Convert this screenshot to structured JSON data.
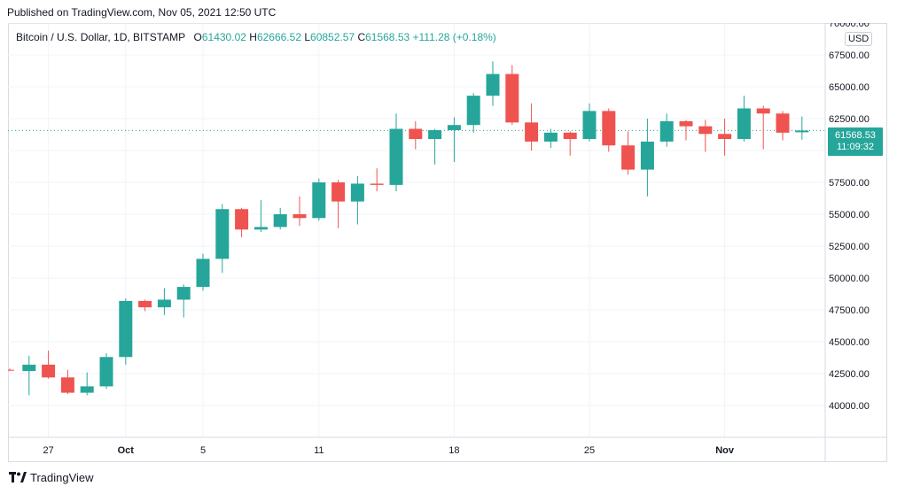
{
  "header": {
    "published": "Published on TradingView.com, Nov 05, 2021 12:50 UTC"
  },
  "legend": {
    "symbol": "Bitcoin / U.S. Dollar, 1D, BITSTAMP",
    "o_label": "O",
    "o_value": "61430.02",
    "h_label": "H",
    "h_value": "62666.52",
    "l_label": "L",
    "l_value": "60852.57",
    "c_label": "C",
    "c_value": "61568.53",
    "change": "+111.28 (+0.18%)"
  },
  "currency": "USD",
  "price_tag": {
    "price": "61568.53",
    "countdown": "11:09:32"
  },
  "footer": {
    "brand": "TradingView"
  },
  "colors": {
    "up": "#26a69a",
    "down": "#ef5350",
    "grid": "#f0f3fa",
    "axis_text": "#131722"
  },
  "chart_data": {
    "type": "candlestick",
    "ylim": [
      37500,
      70000
    ],
    "y_ticks": [
      70000,
      67500,
      65000,
      62500,
      60000,
      57500,
      55000,
      52500,
      50000,
      47500,
      45000,
      42500,
      40000
    ],
    "y_tick_labels": [
      "70000.00",
      "67500.00",
      "65000.00",
      "62500.00",
      "60000.00",
      "57500.00",
      "55000.00",
      "52500.00",
      "50000.00",
      "47500.00",
      "45000.00",
      "42500.00",
      "40000.00"
    ],
    "x_ticks": [
      {
        "label": "27",
        "date": "2021-09-27"
      },
      {
        "label": "Oct",
        "date": "2021-10-01"
      },
      {
        "label": "5",
        "date": "2021-10-05"
      },
      {
        "label": "11",
        "date": "2021-10-11"
      },
      {
        "label": "18",
        "date": "2021-10-18"
      },
      {
        "label": "25",
        "date": "2021-10-25"
      },
      {
        "label": "Nov",
        "date": "2021-11-01"
      }
    ],
    "last_price": 61568.53,
    "candles": [
      {
        "date": "2021-09-25",
        "o": 42800,
        "h": 42900,
        "l": 42700,
        "c": 42750
      },
      {
        "date": "2021-09-26",
        "o": 42700,
        "h": 43900,
        "l": 40800,
        "c": 43200
      },
      {
        "date": "2021-09-27",
        "o": 43200,
        "h": 44300,
        "l": 42100,
        "c": 42200
      },
      {
        "date": "2021-09-28",
        "o": 42200,
        "h": 42800,
        "l": 40900,
        "c": 41000
      },
      {
        "date": "2021-09-29",
        "o": 41000,
        "h": 42600,
        "l": 40800,
        "c": 41500
      },
      {
        "date": "2021-09-30",
        "o": 41500,
        "h": 44100,
        "l": 41300,
        "c": 43800
      },
      {
        "date": "2021-10-01",
        "o": 43800,
        "h": 48400,
        "l": 43200,
        "c": 48200
      },
      {
        "date": "2021-10-02",
        "o": 48200,
        "h": 48300,
        "l": 47400,
        "c": 47700
      },
      {
        "date": "2021-10-03",
        "o": 47700,
        "h": 49200,
        "l": 47100,
        "c": 48300
      },
      {
        "date": "2021-10-04",
        "o": 48300,
        "h": 49500,
        "l": 46900,
        "c": 49300
      },
      {
        "date": "2021-10-05",
        "o": 49300,
        "h": 51900,
        "l": 49000,
        "c": 51500
      },
      {
        "date": "2021-10-06",
        "o": 51500,
        "h": 55800,
        "l": 50400,
        "c": 55400
      },
      {
        "date": "2021-10-07",
        "o": 55400,
        "h": 55500,
        "l": 53200,
        "c": 53800
      },
      {
        "date": "2021-10-08",
        "o": 53800,
        "h": 56100,
        "l": 53600,
        "c": 54000
      },
      {
        "date": "2021-10-09",
        "o": 54000,
        "h": 55500,
        "l": 53800,
        "c": 55000
      },
      {
        "date": "2021-10-10",
        "o": 55000,
        "h": 56400,
        "l": 54100,
        "c": 54700
      },
      {
        "date": "2021-10-11",
        "o": 54700,
        "h": 57800,
        "l": 54500,
        "c": 57500
      },
      {
        "date": "2021-10-12",
        "o": 57500,
        "h": 57700,
        "l": 53900,
        "c": 56000
      },
      {
        "date": "2021-10-13",
        "o": 56000,
        "h": 58000,
        "l": 54200,
        "c": 57400
      },
      {
        "date": "2021-10-14",
        "o": 57400,
        "h": 58600,
        "l": 56800,
        "c": 57300
      },
      {
        "date": "2021-10-15",
        "o": 57300,
        "h": 62900,
        "l": 56800,
        "c": 61700
      },
      {
        "date": "2021-10-16",
        "o": 61700,
        "h": 62300,
        "l": 60100,
        "c": 60900
      },
      {
        "date": "2021-10-17",
        "o": 60900,
        "h": 61700,
        "l": 58900,
        "c": 61600
      },
      {
        "date": "2021-10-18",
        "o": 61600,
        "h": 62600,
        "l": 59100,
        "c": 62000
      },
      {
        "date": "2021-10-19",
        "o": 62000,
        "h": 64500,
        "l": 61400,
        "c": 64300
      },
      {
        "date": "2021-10-20",
        "o": 64300,
        "h": 67000,
        "l": 63500,
        "c": 66000
      },
      {
        "date": "2021-10-21",
        "o": 66000,
        "h": 66700,
        "l": 62000,
        "c": 62200
      },
      {
        "date": "2021-10-22",
        "o": 62200,
        "h": 63700,
        "l": 60000,
        "c": 60700
      },
      {
        "date": "2021-10-23",
        "o": 60700,
        "h": 61700,
        "l": 60200,
        "c": 61400
      },
      {
        "date": "2021-10-24",
        "o": 61400,
        "h": 61500,
        "l": 59600,
        "c": 60900
      },
      {
        "date": "2021-10-25",
        "o": 60900,
        "h": 63700,
        "l": 60700,
        "c": 63100
      },
      {
        "date": "2021-10-26",
        "o": 63100,
        "h": 63300,
        "l": 59900,
        "c": 60400
      },
      {
        "date": "2021-10-27",
        "o": 60400,
        "h": 61500,
        "l": 58100,
        "c": 58500
      },
      {
        "date": "2021-10-28",
        "o": 58500,
        "h": 62500,
        "l": 56400,
        "c": 60700
      },
      {
        "date": "2021-10-29",
        "o": 60700,
        "h": 62900,
        "l": 60300,
        "c": 62300
      },
      {
        "date": "2021-10-30",
        "o": 62300,
        "h": 62400,
        "l": 60800,
        "c": 61900
      },
      {
        "date": "2021-10-31",
        "o": 61900,
        "h": 62400,
        "l": 59900,
        "c": 61300
      },
      {
        "date": "2021-11-01",
        "o": 61300,
        "h": 62500,
        "l": 59600,
        "c": 60900
      },
      {
        "date": "2021-11-02",
        "o": 60900,
        "h": 64300,
        "l": 60700,
        "c": 63300
      },
      {
        "date": "2021-11-03",
        "o": 63300,
        "h": 63500,
        "l": 60100,
        "c": 62900
      },
      {
        "date": "2021-11-04",
        "o": 62900,
        "h": 63100,
        "l": 60800,
        "c": 61400
      },
      {
        "date": "2021-11-05",
        "o": 61430.02,
        "h": 62666.52,
        "l": 60852.57,
        "c": 61568.53
      }
    ]
  }
}
